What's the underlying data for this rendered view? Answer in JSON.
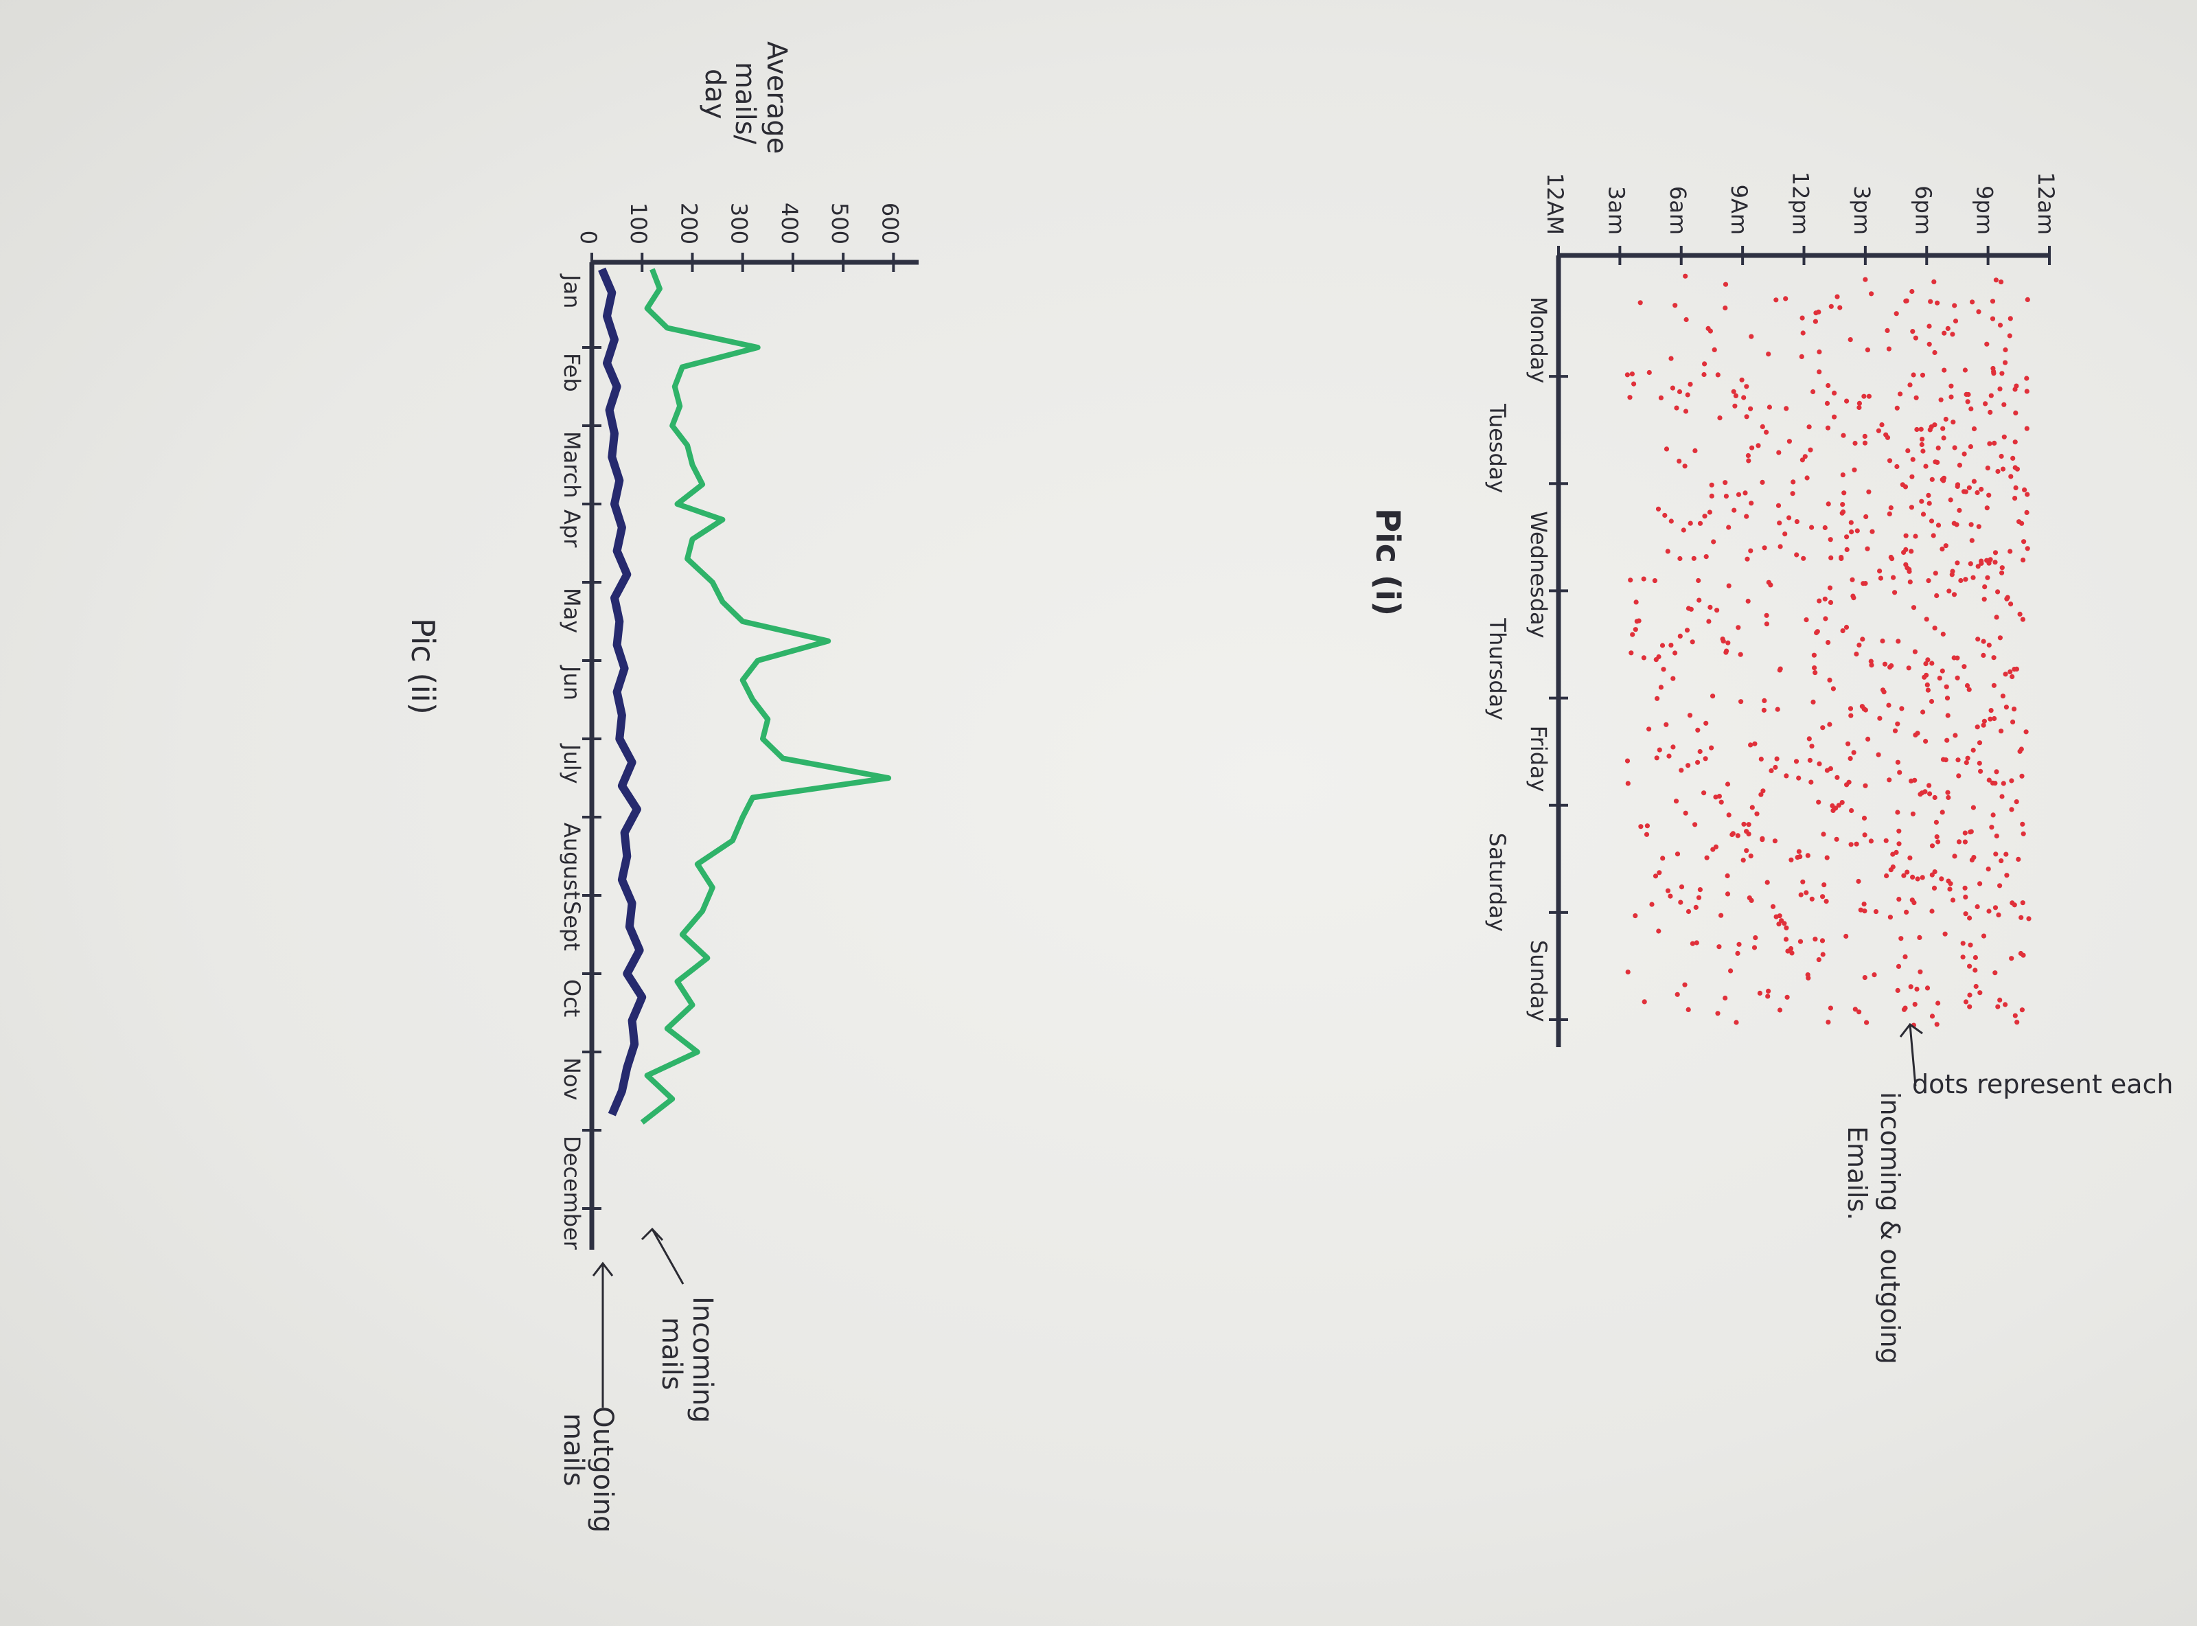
{
  "chart_data": [
    {
      "type": "scatter",
      "title": "Pic (i)",
      "xlabel": "",
      "ylabel": "",
      "x_categories": [
        "Monday",
        "Tuesday",
        "Wednesday",
        "Thursday",
        "Friday",
        "Saturday",
        "Sunday"
      ],
      "y_ticks": [
        "12AM",
        "3am",
        "6am",
        "9Am",
        "12pm",
        "3pm",
        "6pm",
        "9pm",
        "12am"
      ],
      "annotation": "dots represent each incoming & outgoing Emails.",
      "dot_color": "#e0303a",
      "density_by_day": [
        {
          "day": "Monday",
          "relative_density": 0.55
        },
        {
          "day": "Tuesday",
          "relative_density": 0.95
        },
        {
          "day": "Wednesday",
          "relative_density": 1.0
        },
        {
          "day": "Thursday",
          "relative_density": 0.8
        },
        {
          "day": "Friday",
          "relative_density": 0.9
        },
        {
          "day": "Saturday",
          "relative_density": 1.0
        },
        {
          "day": "Sunday",
          "relative_density": 0.6
        }
      ]
    },
    {
      "type": "line",
      "title": "Pic (ii)",
      "xlabel": "",
      "ylabel": "Average mails/ day",
      "categories": [
        "Jan",
        "Feb",
        "March",
        "Apr",
        "May",
        "Jun",
        "July",
        "August",
        "Sept",
        "Oct",
        "Nov",
        "December"
      ],
      "y_ticks": [
        "0",
        "100",
        "200",
        "300",
        "400",
        "500",
        "600"
      ],
      "ylim": [
        0,
        650
      ],
      "series": [
        {
          "name": "Incoming mails",
          "color": "#2fb369",
          "x": [
            0,
            0.25,
            0.5,
            0.75,
            1.0,
            1.25,
            1.5,
            1.75,
            2.0,
            2.25,
            2.5,
            2.75,
            3.0,
            3.2,
            3.45,
            3.7,
            4.0,
            4.25,
            4.5,
            4.75,
            5.0,
            5.25,
            5.5,
            5.75,
            6.0,
            6.25,
            6.5,
            6.75,
            7.0,
            7.3,
            7.6,
            7.9,
            8.2,
            8.5,
            8.8,
            9.1,
            9.4,
            9.7,
            10.0,
            10.3,
            10.6,
            10.9
          ],
          "values": [
            120,
            135,
            110,
            150,
            330,
            180,
            165,
            175,
            160,
            190,
            200,
            220,
            170,
            260,
            200,
            190,
            240,
            260,
            300,
            470,
            330,
            300,
            320,
            350,
            340,
            380,
            590,
            320,
            300,
            280,
            210,
            240,
            220,
            180,
            230,
            170,
            200,
            150,
            210,
            110,
            160,
            100
          ]
        },
        {
          "name": "Outgoing mails",
          "color": "#262a6e",
          "x": [
            0,
            0.3,
            0.6,
            0.9,
            1.2,
            1.5,
            1.8,
            2.1,
            2.4,
            2.7,
            3.0,
            3.3,
            3.6,
            3.9,
            4.2,
            4.5,
            4.8,
            5.1,
            5.4,
            5.7,
            6.0,
            6.3,
            6.6,
            6.9,
            7.2,
            7.5,
            7.8,
            8.1,
            8.4,
            8.7,
            9.0,
            9.3,
            9.6,
            9.9,
            10.2,
            10.5,
            10.8
          ],
          "values": [
            20,
            40,
            30,
            45,
            30,
            50,
            35,
            45,
            40,
            55,
            45,
            60,
            50,
            70,
            45,
            55,
            50,
            65,
            50,
            60,
            55,
            80,
            60,
            90,
            65,
            70,
            60,
            80,
            75,
            95,
            70,
            100,
            80,
            85,
            70,
            60,
            40
          ]
        }
      ]
    }
  ]
}
